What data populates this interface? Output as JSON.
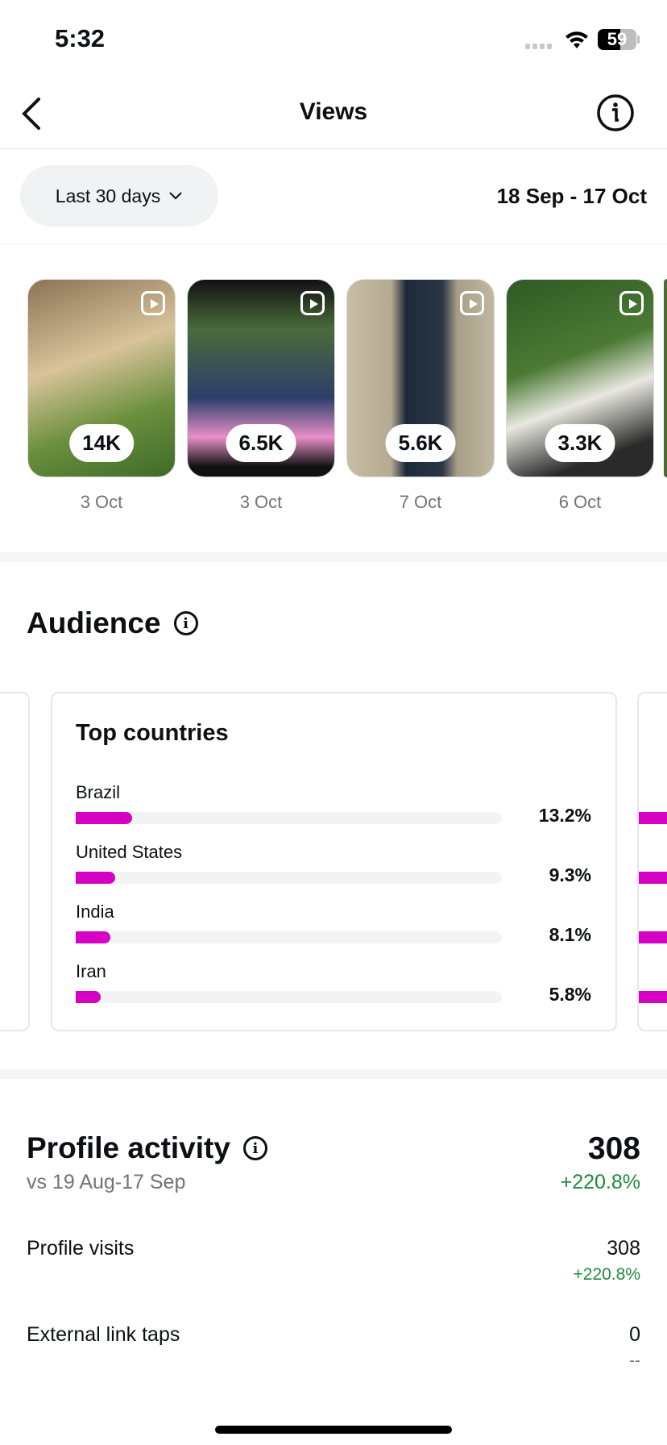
{
  "status": {
    "time": "5:32",
    "battery": "59"
  },
  "header": {
    "title": "Views"
  },
  "filter": {
    "period": "Last 30 days",
    "range": "18 Sep - 17 Oct"
  },
  "reels": [
    {
      "views": "14K",
      "date": "3 Oct"
    },
    {
      "views": "6.5K",
      "date": "3 Oct"
    },
    {
      "views": "5.6K",
      "date": "7 Oct"
    },
    {
      "views": "3.3K",
      "date": "6 Oct"
    }
  ],
  "audience": {
    "title": "Audience",
    "card_title": "Top countries",
    "countries": [
      {
        "name": "Brazil",
        "pct": "13.2%",
        "value": 13.2
      },
      {
        "name": "United States",
        "pct": "9.3%",
        "value": 9.3
      },
      {
        "name": "India",
        "pct": "8.1%",
        "value": 8.1
      },
      {
        "name": "Iran",
        "pct": "5.8%",
        "value": 5.8
      }
    ]
  },
  "profile": {
    "title": "Profile activity",
    "compare": "vs 19 Aug-17 Sep",
    "total": "308",
    "total_change": "+220.8%",
    "rows": [
      {
        "label": "Profile visits",
        "value": "308",
        "change": "+220.8%"
      },
      {
        "label": "External link taps",
        "value": "0",
        "change": "--"
      }
    ]
  },
  "colors": {
    "bar": "#d600c4",
    "positive": "#1f8a3c"
  }
}
